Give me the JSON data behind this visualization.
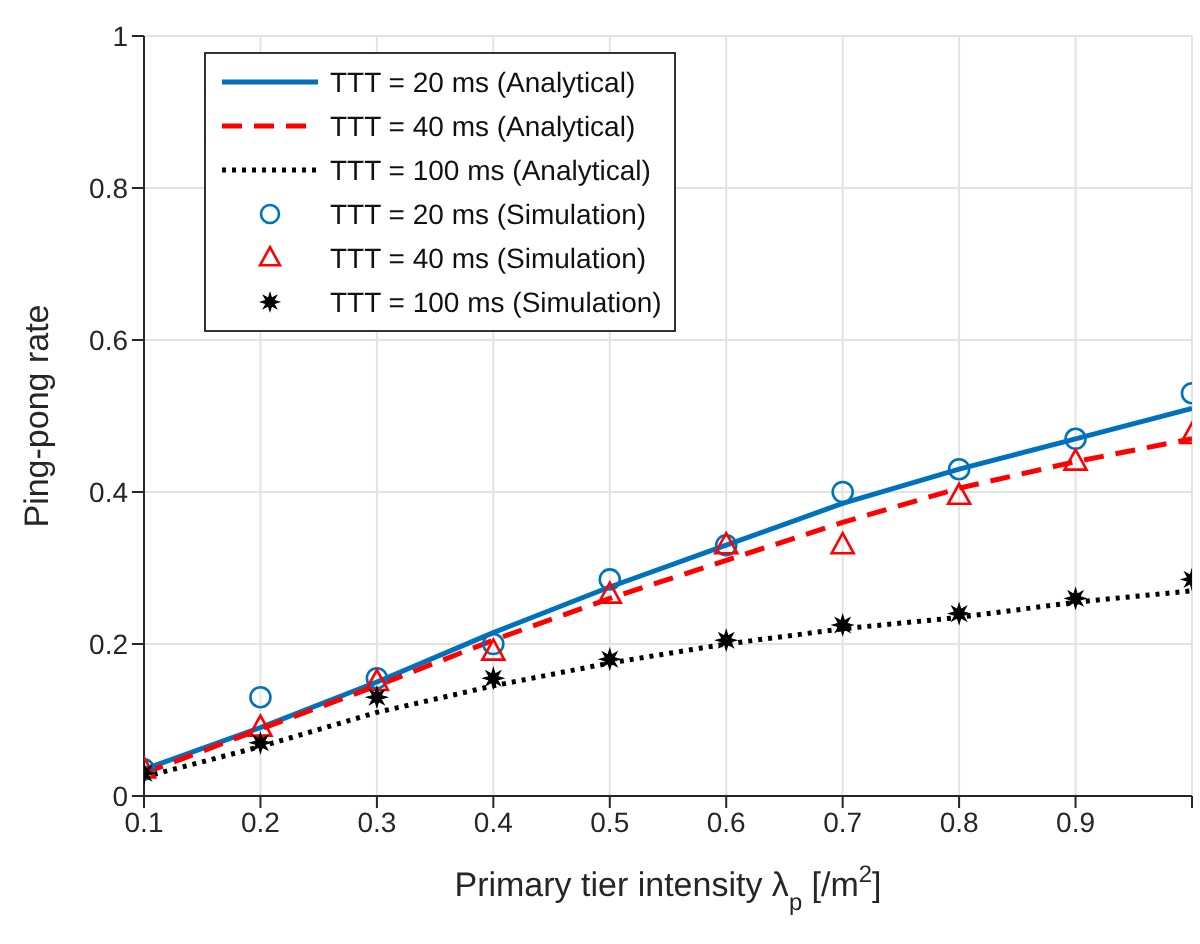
{
  "chart_data": {
    "type": "line",
    "xlabel": "Primary tier intensity λ$_{p}$ [/m$^{2}$]",
    "ylabel": "Ping-pong rate",
    "x": [
      0.1,
      0.2,
      0.3,
      0.4,
      0.5,
      0.6,
      0.7,
      0.8,
      0.9,
      1.0
    ],
    "xlim": [
      0.1,
      1
    ],
    "xticks": [
      0.1,
      0.2,
      0.3,
      0.4,
      0.5,
      0.6,
      0.7,
      0.8,
      0.9,
      {
        "value": 1,
        "label": null
      }
    ],
    "ylim": [
      0,
      1
    ],
    "yticks": [
      0,
      0.2,
      0.4,
      0.6,
      0.8,
      1
    ],
    "grid": true,
    "legend": "top left",
    "series": [
      {
        "name": "TTT = 20 ms (Analytical)",
        "type": "line",
        "color": "#0072bd",
        "line_style": "solid",
        "marker": "none",
        "values": [
          0.035,
          0.09,
          0.15,
          0.215,
          0.275,
          0.33,
          0.385,
          0.43,
          0.47,
          0.51
        ]
      },
      {
        "name": "TTT = 40 ms (Analytical)",
        "type": "line",
        "color": "#ff0000",
        "line_style": "dashed",
        "marker": "none",
        "values": [
          0.03,
          0.088,
          0.145,
          0.205,
          0.26,
          0.31,
          0.36,
          0.405,
          0.44,
          0.47
        ]
      },
      {
        "name": "TTT = 100 ms (Analytical)",
        "type": "line",
        "color": "#000000",
        "line_style": "dotted",
        "marker": "none",
        "values": [
          0.025,
          0.065,
          0.11,
          0.145,
          0.175,
          0.2,
          0.22,
          0.235,
          0.255,
          0.27
        ]
      },
      {
        "name": "TTT = 20 ms (Simulation)",
        "type": "scatter",
        "color": "#0072bd",
        "marker": "circle",
        "values": [
          0.035,
          0.13,
          0.155,
          0.2,
          0.285,
          0.33,
          0.4,
          0.43,
          0.47,
          0.53
        ]
      },
      {
        "name": "TTT = 40 ms (Simulation)",
        "type": "scatter",
        "color": "#ff0000",
        "marker": "triangle",
        "values": [
          0.035,
          0.09,
          0.15,
          0.19,
          0.265,
          0.33,
          0.33,
          0.395,
          0.44,
          0.475
        ]
      },
      {
        "name": "TTT = 100 ms (Simulation)",
        "type": "scatter",
        "color": "#000000",
        "marker": "star",
        "values": [
          0.03,
          0.07,
          0.13,
          0.155,
          0.18,
          0.205,
          0.225,
          0.24,
          0.26,
          0.285
        ]
      }
    ]
  }
}
